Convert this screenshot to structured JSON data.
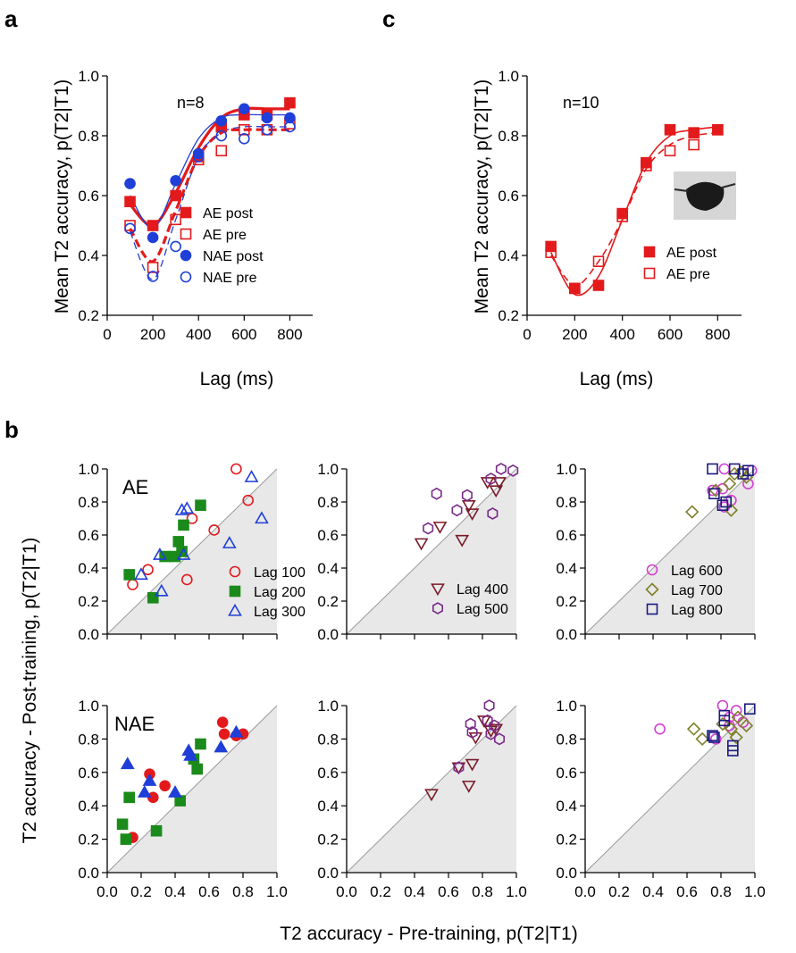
{
  "panel_labels": [
    "a",
    "c",
    "b"
  ],
  "colors": {
    "AE": "#e31a1c",
    "NAE": "#1f3fd8",
    "lag100": "#e31a1c",
    "lag200": "#1a8a1a",
    "lag300": "#1f3fd8",
    "lag400": "#7a1a28",
    "lag500": "#7a2a8a",
    "lag600": "#d43fd4",
    "lag700": "#7f7f2a",
    "lag800": "#1a1a80",
    "shade": "#e8e8e8"
  },
  "chart_data": [
    {
      "id": "a",
      "type": "line",
      "annotation": "n=8",
      "xlabel": "Lag (ms)",
      "ylabel": "Mean T2 accuracy, p(T2|T1)",
      "xlim": [
        0,
        900
      ],
      "ylim": [
        0.2,
        1.0
      ],
      "xticks": [
        0,
        200,
        400,
        600,
        800
      ],
      "yticks": [
        0.2,
        0.4,
        0.6,
        0.8,
        1.0
      ],
      "x": [
        100,
        200,
        300,
        400,
        500,
        600,
        700,
        800
      ],
      "series": [
        {
          "name": "AE post",
          "color": "#e31a1c",
          "marker": "square-filled",
          "fit": "solid-thick",
          "values": [
            0.58,
            0.5,
            0.6,
            0.73,
            0.83,
            0.87,
            0.87,
            0.91
          ],
          "fit_values": [
            0.57,
            0.5,
            0.61,
            0.76,
            0.86,
            0.89,
            0.89,
            0.89
          ]
        },
        {
          "name": "AE pre",
          "color": "#e31a1c",
          "marker": "square-open",
          "fit": "dashed-thick",
          "values": [
            0.5,
            0.36,
            0.52,
            0.72,
            0.75,
            0.82,
            0.82,
            0.84
          ],
          "fit_values": [
            0.49,
            0.38,
            0.55,
            0.73,
            0.81,
            0.82,
            0.82,
            0.82
          ]
        },
        {
          "name": "NAE post",
          "color": "#1f3fd8",
          "marker": "circle-filled",
          "fit": "solid-thin",
          "values": [
            0.64,
            0.46,
            0.65,
            0.74,
            0.85,
            0.89,
            0.86,
            0.86
          ],
          "fit_values": [
            0.6,
            0.49,
            0.64,
            0.79,
            0.86,
            0.87,
            0.87,
            0.87
          ]
        },
        {
          "name": "NAE pre",
          "color": "#1f3fd8",
          "marker": "circle-open",
          "fit": "dashed-thin",
          "values": [
            0.49,
            0.33,
            0.43,
            0.73,
            0.8,
            0.79,
            0.82,
            0.83
          ],
          "fit_values": [
            0.48,
            0.32,
            0.52,
            0.73,
            0.81,
            0.83,
            0.83,
            0.83
          ]
        }
      ]
    },
    {
      "id": "c",
      "type": "line",
      "annotation": "n=10",
      "xlabel": "Lag (ms)",
      "ylabel": "Mean T2 accuracy, p(T2|T1)",
      "xlim": [
        0,
        900
      ],
      "ylim": [
        0.2,
        1.0
      ],
      "xticks": [
        0,
        200,
        400,
        600,
        800
      ],
      "yticks": [
        0.2,
        0.4,
        0.6,
        0.8,
        1.0
      ],
      "x": [
        100,
        200,
        300,
        400,
        500,
        600,
        700,
        800
      ],
      "series": [
        {
          "name": "AE post",
          "color": "#e31a1c",
          "marker": "square-filled",
          "fit": "solid",
          "values": [
            0.43,
            0.29,
            0.3,
            0.54,
            0.71,
            0.82,
            0.81,
            0.82
          ],
          "fit_values": [
            0.41,
            0.27,
            0.33,
            0.52,
            0.71,
            0.8,
            0.82,
            0.83
          ]
        },
        {
          "name": "AE pre",
          "color": "#e31a1c",
          "marker": "square-open",
          "fit": "dashed",
          "values": [
            0.41,
            0.29,
            0.38,
            0.53,
            0.7,
            0.75,
            0.77,
            0.82
          ],
          "fit_values": [
            0.4,
            0.3,
            0.38,
            0.52,
            0.69,
            0.77,
            0.8,
            0.81
          ]
        }
      ]
    },
    {
      "id": "b",
      "type": "scatter",
      "xlabel": "T2 accuracy - Pre-training, p(T2|T1)",
      "ylabel": "T2 accuracy - Post-training, p(T2|T1)",
      "xlim": [
        0,
        1.0
      ],
      "ylim": [
        0,
        1.0
      ],
      "xticks": [
        0.0,
        0.2,
        0.4,
        0.6,
        0.8,
        1.0
      ],
      "yticks": [
        0.0,
        0.2,
        0.4,
        0.6,
        0.8,
        1.0
      ],
      "rows": [
        "AE",
        "NAE"
      ],
      "subplots": [
        {
          "row": "AE",
          "col": 0,
          "groups": [
            {
              "name": "Lag 100",
              "marker": "circle-open",
              "color": "#e31a1c",
              "points": [
                [
                  0.15,
                  0.3
                ],
                [
                  0.24,
                  0.39
                ],
                [
                  0.47,
                  0.33
                ],
                [
                  0.5,
                  0.7
                ],
                [
                  0.63,
                  0.63
                ],
                [
                  0.76,
                  1.0
                ],
                [
                  0.83,
                  0.81
                ]
              ]
            },
            {
              "name": "Lag 200",
              "marker": "square-filled",
              "color": "#1a8a1a",
              "points": [
                [
                  0.13,
                  0.36
                ],
                [
                  0.27,
                  0.22
                ],
                [
                  0.34,
                  0.47
                ],
                [
                  0.4,
                  0.47
                ],
                [
                  0.42,
                  0.56
                ],
                [
                  0.44,
                  0.5
                ],
                [
                  0.45,
                  0.66
                ],
                [
                  0.55,
                  0.78
                ]
              ]
            },
            {
              "name": "Lag 300",
              "marker": "triangle-open",
              "color": "#1f3fd8",
              "points": [
                [
                  0.2,
                  0.36
                ],
                [
                  0.31,
                  0.48
                ],
                [
                  0.32,
                  0.26
                ],
                [
                  0.44,
                  0.75
                ],
                [
                  0.47,
                  0.76
                ],
                [
                  0.72,
                  0.55
                ],
                [
                  0.85,
                  0.95
                ],
                [
                  0.91,
                  0.7
                ],
                [
                  0.45,
                  0.48
                ]
              ]
            }
          ]
        },
        {
          "row": "AE",
          "col": 1,
          "groups": [
            {
              "name": "Lag 400",
              "marker": "triangle-down-open",
              "color": "#7a1a28",
              "points": [
                [
                  0.44,
                  0.55
                ],
                [
                  0.55,
                  0.65
                ],
                [
                  0.68,
                  0.57
                ],
                [
                  0.72,
                  0.78
                ],
                [
                  0.74,
                  0.73
                ],
                [
                  0.83,
                  0.92
                ],
                [
                  0.88,
                  0.87
                ],
                [
                  0.9,
                  0.92
                ]
              ]
            },
            {
              "name": "Lag 500",
              "marker": "hexagon-open",
              "color": "#7a2a8a",
              "points": [
                [
                  0.48,
                  0.64
                ],
                [
                  0.53,
                  0.85
                ],
                [
                  0.65,
                  0.75
                ],
                [
                  0.71,
                  0.84
                ],
                [
                  0.86,
                  0.73
                ],
                [
                  0.85,
                  0.94
                ],
                [
                  0.91,
                  1.0
                ],
                [
                  0.98,
                  0.99
                ]
              ]
            }
          ]
        },
        {
          "row": "AE",
          "col": 2,
          "groups": [
            {
              "name": "Lag 600",
              "marker": "circle-open",
              "color": "#d43fd4",
              "points": [
                [
                  0.75,
                  0.87
                ],
                [
                  0.81,
                  0.88
                ],
                [
                  0.82,
                  0.77
                ],
                [
                  0.86,
                  0.81
                ],
                [
                  0.96,
                  0.91
                ],
                [
                  0.98,
                  0.99
                ],
                [
                  0.82,
                  1.0
                ]
              ]
            },
            {
              "name": "Lag 700",
              "marker": "diamond-open",
              "color": "#7f7f2a",
              "points": [
                [
                  0.63,
                  0.74
                ],
                [
                  0.77,
                  0.87
                ],
                [
                  0.85,
                  0.91
                ],
                [
                  0.86,
                  0.75
                ],
                [
                  0.95,
                  0.95
                ],
                [
                  0.88,
                  0.97
                ],
                [
                  0.92,
                  0.98
                ]
              ]
            },
            {
              "name": "Lag 800",
              "marker": "square-open",
              "color": "#1a1a80",
              "points": [
                [
                  0.75,
                  1.0
                ],
                [
                  0.76,
                  0.85
                ],
                [
                  0.83,
                  0.8
                ],
                [
                  0.81,
                  0.78
                ],
                [
                  0.88,
                  1.0
                ],
                [
                  0.93,
                  0.97
                ],
                [
                  0.96,
                  0.99
                ]
              ]
            }
          ]
        },
        {
          "row": "NAE",
          "col": 0,
          "groups": [
            {
              "name": "Lag 100",
              "marker": "circle-filled",
              "color": "#e31a1c",
              "points": [
                [
                  0.15,
                  0.21
                ],
                [
                  0.25,
                  0.59
                ],
                [
                  0.27,
                  0.45
                ],
                [
                  0.34,
                  0.52
                ],
                [
                  0.68,
                  0.9
                ],
                [
                  0.69,
                  0.83
                ],
                [
                  0.76,
                  0.82
                ],
                [
                  0.8,
                  0.83
                ]
              ]
            },
            {
              "name": "Lag 200",
              "marker": "square-filled",
              "color": "#1a8a1a",
              "points": [
                [
                  0.09,
                  0.29
                ],
                [
                  0.11,
                  0.2
                ],
                [
                  0.13,
                  0.45
                ],
                [
                  0.29,
                  0.25
                ],
                [
                  0.43,
                  0.43
                ],
                [
                  0.51,
                  0.68
                ],
                [
                  0.53,
                  0.62
                ],
                [
                  0.55,
                  0.77
                ]
              ]
            },
            {
              "name": "Lag 300",
              "marker": "triangle-filled",
              "color": "#1f3fd8",
              "points": [
                [
                  0.12,
                  0.65
                ],
                [
                  0.22,
                  0.48
                ],
                [
                  0.25,
                  0.55
                ],
                [
                  0.4,
                  0.48
                ],
                [
                  0.48,
                  0.73
                ],
                [
                  0.49,
                  0.7
                ],
                [
                  0.67,
                  0.75
                ],
                [
                  0.76,
                  0.84
                ]
              ]
            }
          ]
        },
        {
          "row": "NAE",
          "col": 1,
          "groups": [
            {
              "name": "Lag 400",
              "marker": "triangle-down-open",
              "color": "#7a1a28",
              "points": [
                [
                  0.5,
                  0.47
                ],
                [
                  0.66,
                  0.63
                ],
                [
                  0.72,
                  0.52
                ],
                [
                  0.74,
                  0.65
                ],
                [
                  0.76,
                  0.81
                ],
                [
                  0.81,
                  0.91
                ],
                [
                  0.85,
                  0.85
                ],
                [
                  0.88,
                  0.86
                ]
              ]
            },
            {
              "name": "Lag 500",
              "marker": "hexagon-open",
              "color": "#7a2a8a",
              "points": [
                [
                  0.66,
                  0.63
                ],
                [
                  0.73,
                  0.89
                ],
                [
                  0.74,
                  0.84
                ],
                [
                  0.83,
                  0.91
                ],
                [
                  0.84,
                  1.0
                ],
                [
                  0.85,
                  0.83
                ],
                [
                  0.87,
                  0.88
                ],
                [
                  0.9,
                  0.8
                ]
              ]
            }
          ]
        },
        {
          "row": "NAE",
          "col": 2,
          "groups": [
            {
              "name": "Lag 600",
              "marker": "circle-open",
              "color": "#d43fd4",
              "points": [
                [
                  0.44,
                  0.86
                ],
                [
                  0.77,
                  0.8
                ],
                [
                  0.81,
                  1.0
                ],
                [
                  0.85,
                  0.93
                ],
                [
                  0.89,
                  0.97
                ],
                [
                  0.93,
                  0.9
                ],
                [
                  0.85,
                  0.88
                ]
              ]
            },
            {
              "name": "Lag 700",
              "marker": "diamond-open",
              "color": "#7f7f2a",
              "points": [
                [
                  0.64,
                  0.86
                ],
                [
                  0.69,
                  0.8
                ],
                [
                  0.81,
                  0.89
                ],
                [
                  0.86,
                  0.86
                ],
                [
                  0.89,
                  0.81
                ],
                [
                  0.9,
                  0.93
                ],
                [
                  0.95,
                  0.88
                ]
              ]
            },
            {
              "name": "Lag 800",
              "marker": "square-open",
              "color": "#1a1a80",
              "points": [
                [
                  0.75,
                  0.82
                ],
                [
                  0.82,
                  0.91
                ],
                [
                  0.82,
                  0.94
                ],
                [
                  0.87,
                  0.73
                ],
                [
                  0.87,
                  0.76
                ],
                [
                  0.97,
                  0.98
                ],
                [
                  0.76,
                  0.81
                ]
              ]
            }
          ]
        }
      ]
    }
  ]
}
